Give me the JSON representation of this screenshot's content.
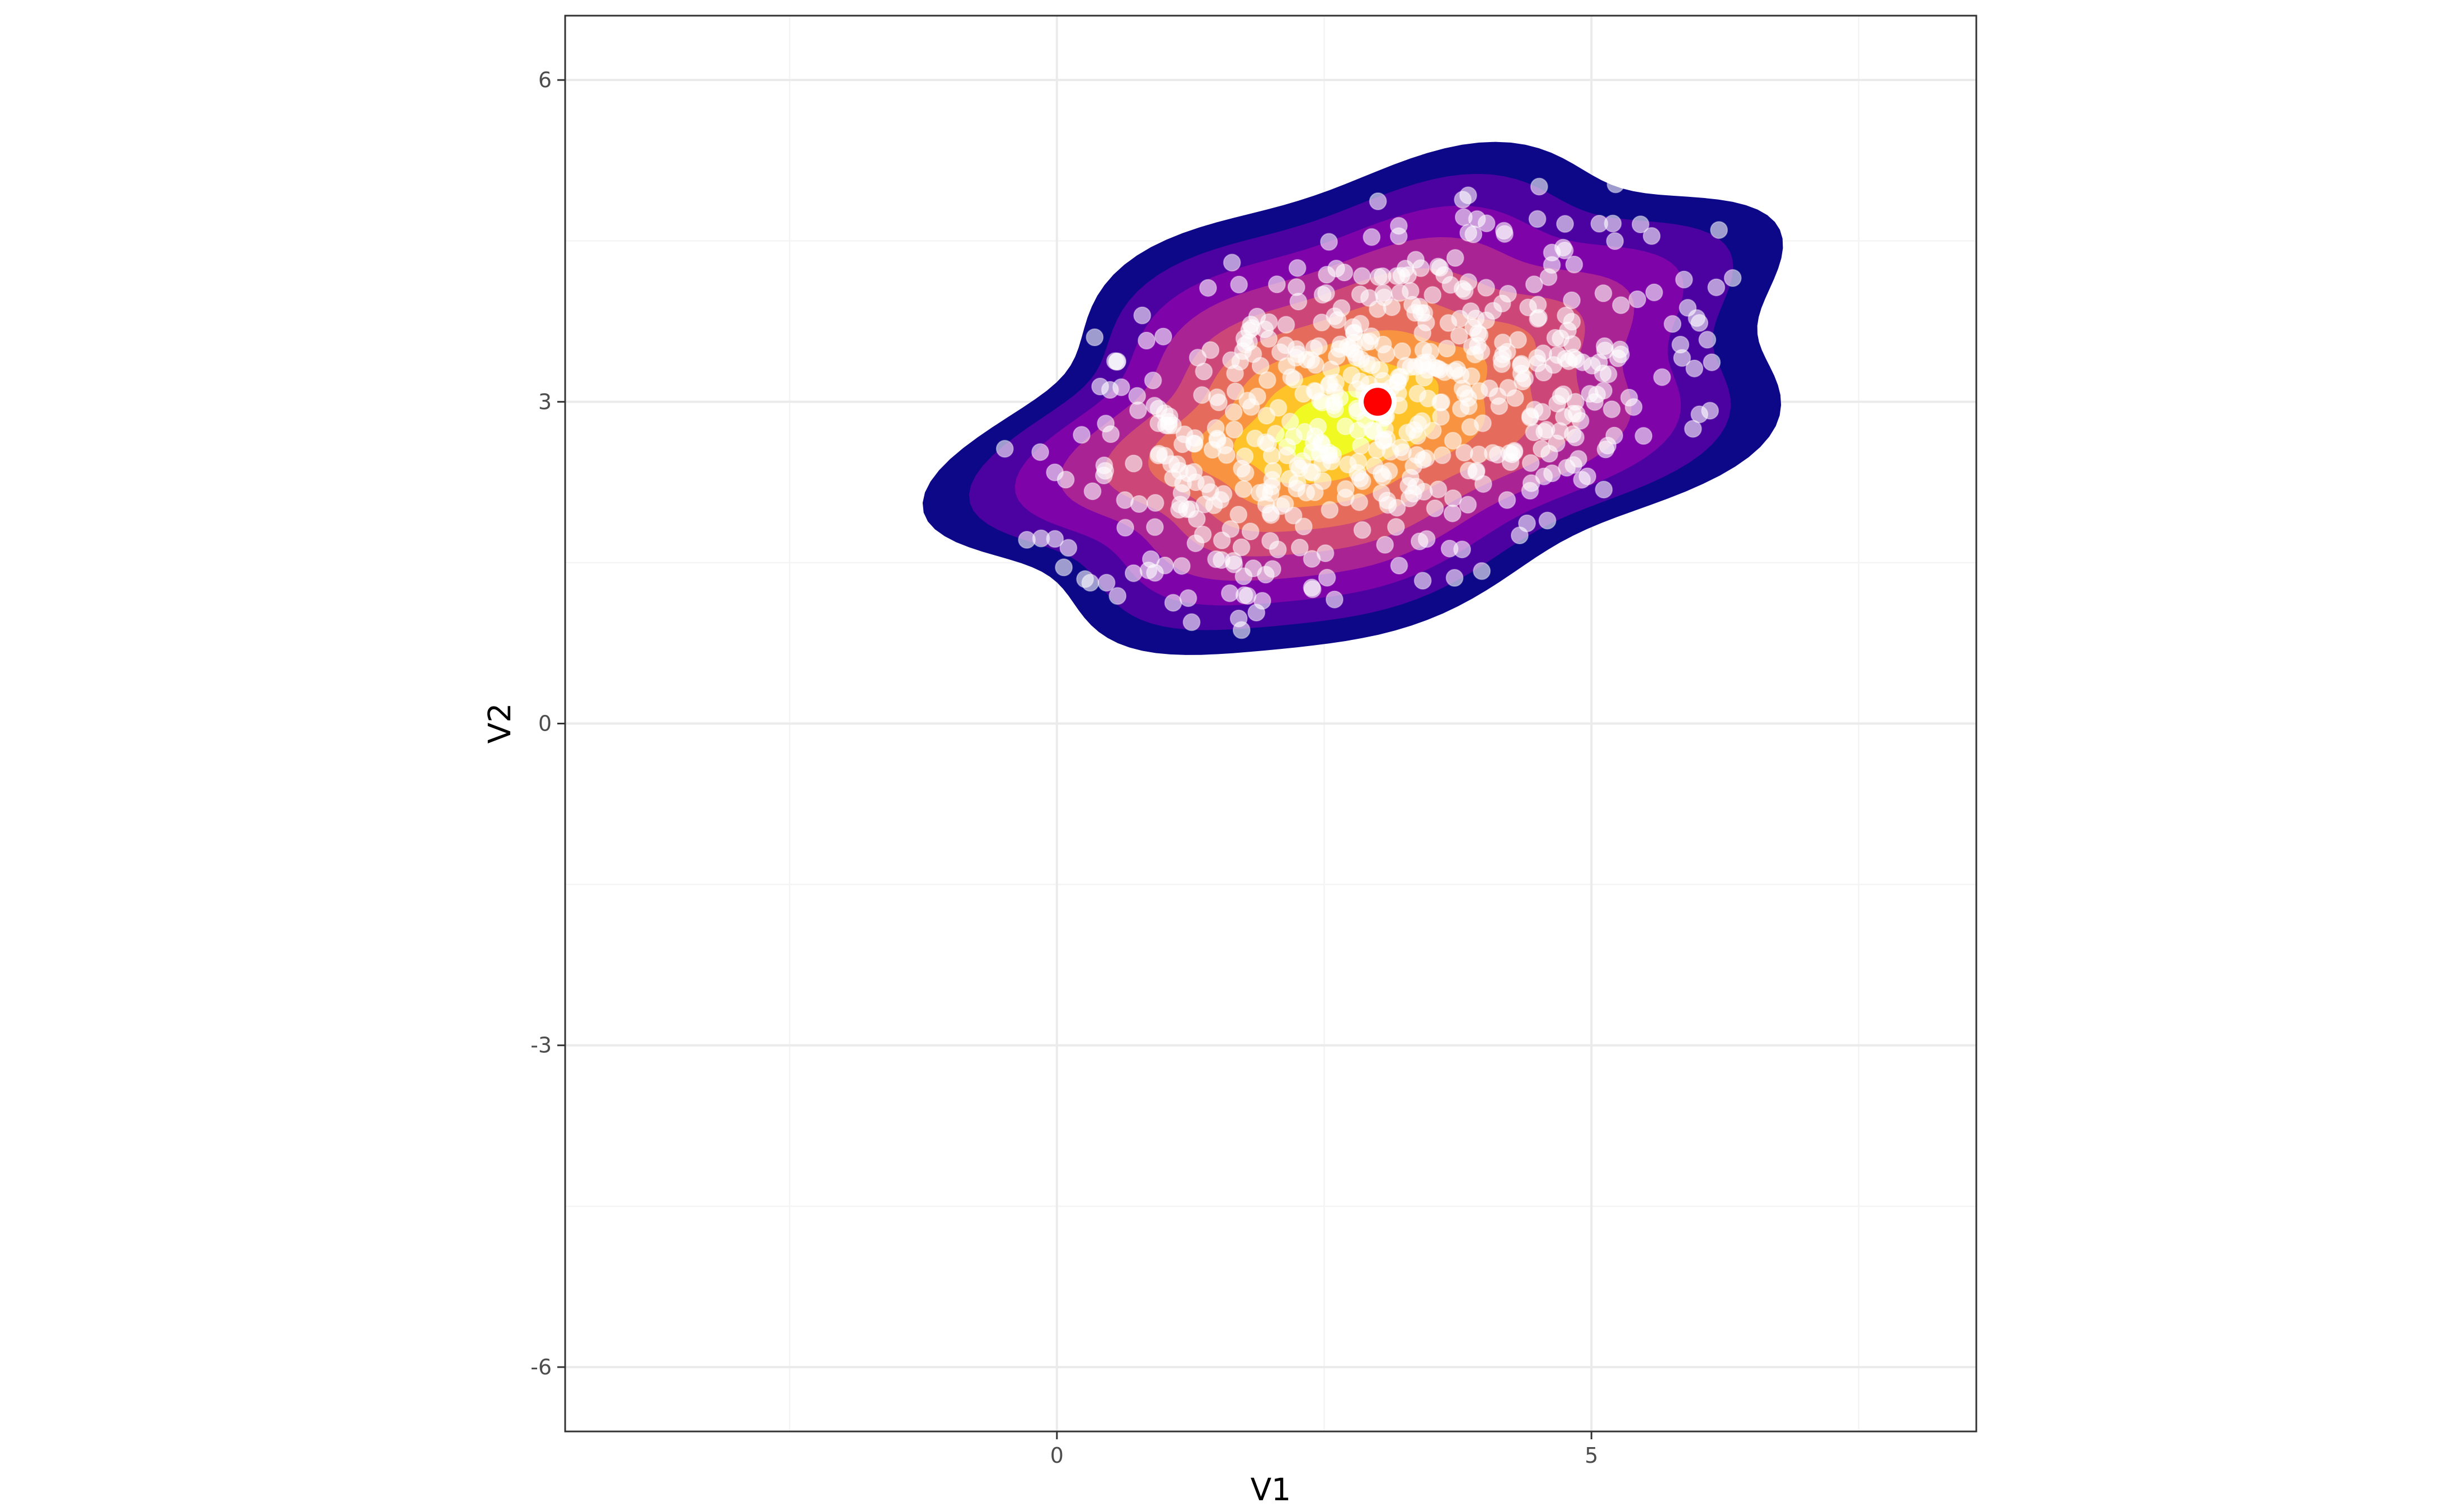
{
  "chart_data": {
    "type": "scatter",
    "title": "",
    "xlabel": "V1",
    "ylabel": "V2",
    "xlim": [
      -4.6,
      8.6
    ],
    "ylim": [
      -6.6,
      6.6
    ],
    "x_ticks": [
      0,
      5
    ],
    "y_ticks": [
      -6,
      -3,
      0,
      3,
      6
    ],
    "x_tick_labels": [
      "0",
      "5"
    ],
    "y_tick_labels": [
      "-6",
      "-3",
      "0",
      "3",
      "6"
    ],
    "grid": true,
    "legend": "none",
    "density_fill": {
      "type": "filled_contour",
      "center": [
        3,
        3
      ],
      "levels": 8,
      "palette": [
        "#0d0887",
        "#4c02a1",
        "#7e03a8",
        "#a92395",
        "#cc4778",
        "#e56b5d",
        "#f89441",
        "#fdc328",
        "#f0f921"
      ]
    },
    "highlight_point": {
      "x": 3.0,
      "y": 3.0,
      "color": "#ff0000"
    },
    "points": {
      "n": 600,
      "center": [
        3,
        3
      ],
      "sd": [
        1.7,
        0.95
      ],
      "correlation": 0.45,
      "color": "#ffffff",
      "opacity": 0.6
    }
  }
}
